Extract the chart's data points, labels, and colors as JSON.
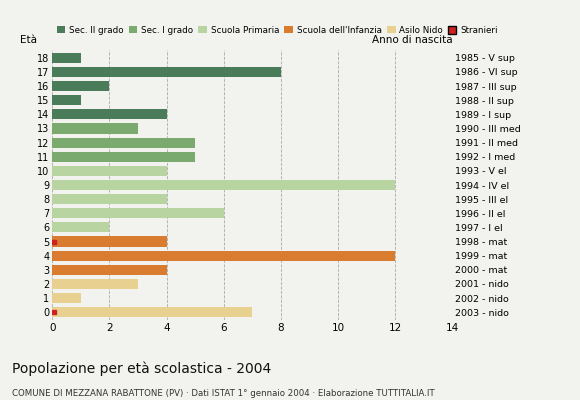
{
  "ages": [
    18,
    17,
    16,
    15,
    14,
    13,
    12,
    11,
    10,
    9,
    8,
    7,
    6,
    5,
    4,
    3,
    2,
    1,
    0
  ],
  "anno_nascita": [
    "1985 - V sup",
    "1986 - VI sup",
    "1987 - III sup",
    "1988 - II sup",
    "1989 - I sup",
    "1990 - III med",
    "1991 - II med",
    "1992 - I med",
    "1993 - V el",
    "1994 - IV el",
    "1995 - III el",
    "1996 - II el",
    "1997 - I el",
    "1998 - mat",
    "1999 - mat",
    "2000 - mat",
    "2001 - nido",
    "2002 - nido",
    "2003 - nido"
  ],
  "values": [
    1,
    8,
    2,
    1,
    4,
    3,
    5,
    5,
    4,
    12,
    4,
    6,
    2,
    4,
    12,
    4,
    3,
    1,
    7
  ],
  "colors": [
    "#4a7c59",
    "#4a7c59",
    "#4a7c59",
    "#4a7c59",
    "#4a7c59",
    "#7aaa6d",
    "#7aaa6d",
    "#7aaa6d",
    "#b8d4a0",
    "#b8d4a0",
    "#b8d4a0",
    "#b8d4a0",
    "#b8d4a0",
    "#d97c30",
    "#d97c30",
    "#d97c30",
    "#e8d090",
    "#e8d090",
    "#e8d090"
  ],
  "stranieri_ages": [
    5,
    0
  ],
  "legend_labels": [
    "Sec. II grado",
    "Sec. I grado",
    "Scuola Primaria",
    "Scuola dell'Infanzia",
    "Asilo Nido",
    "Stranieri"
  ],
  "legend_colors": [
    "#4a7c59",
    "#7aaa6d",
    "#b8d4a0",
    "#d97c30",
    "#e8d090",
    "#cc2222"
  ],
  "title": "Popolazione per età scolastica - 2004",
  "subtitle": "COMUNE DI MEZZANA RABATTONE (PV) · Dati ISTAT 1° gennaio 2004 · Elaborazione TUTTITALIA.IT",
  "label_eta": "Età",
  "label_anno": "Anno di nascita",
  "xlim": [
    0,
    14
  ],
  "xticks": [
    0,
    2,
    4,
    6,
    8,
    10,
    12,
    14
  ],
  "background_color": "#f2f2ee",
  "bar_height": 0.72
}
